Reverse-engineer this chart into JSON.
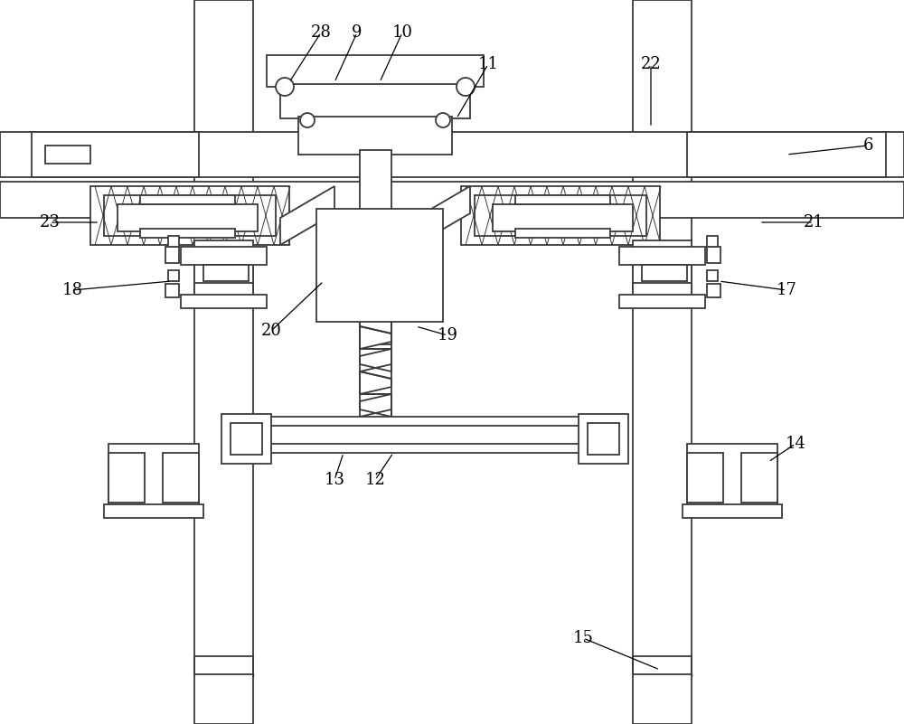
{
  "bg_color": "#ffffff",
  "lc": "#3a3a3a",
  "lw": 1.3,
  "lw_thin": 0.7,
  "fig_width": 10.0,
  "fig_height": 8.01,
  "label_fontsize": 13
}
